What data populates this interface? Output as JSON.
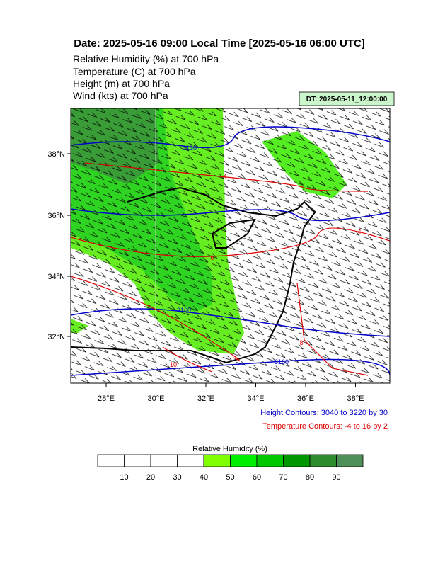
{
  "header": {
    "title": "Date: 2025-05-16  09:00 Local Time [2025-05-16  06:00 UTC]",
    "lines": [
      "Relative Humidity   (%)    at   700 hPa",
      "Temperature   (C)     at   700 hPa",
      "Height   (m)     at   700 hPa",
      "Wind   (kts)     at   700 hPa"
    ],
    "dt": "DT: 2025-05-11_12:00:00"
  },
  "map": {
    "lat_labels": [
      "38°N",
      "36°N",
      "34°N",
      "32°N"
    ],
    "lon_labels": [
      "28°E",
      "30°E",
      "32°E",
      "34°E",
      "36°E",
      "38°E"
    ],
    "height_labels": [
      "3130",
      "3160",
      "3160"
    ],
    "temp_labels": [
      "4",
      "4",
      "6",
      "8",
      "10"
    ]
  },
  "legend": {
    "height": "Height Contours: 3040 to 3220 by 30",
    "temperature": "Temperature Contours: -4 to 16 by 2"
  },
  "colorbar": {
    "title": "Relative Humidity  (%)",
    "ticks": [
      10,
      20,
      30,
      40,
      50,
      60,
      70,
      80,
      90
    ],
    "colors": [
      "#ffffff",
      "#ffffff",
      "#ffffff",
      "#ffffff",
      "#80ff00",
      "#00f000",
      "#00c800",
      "#009600",
      "#2e8b2e",
      "#4f8f5a"
    ]
  }
}
